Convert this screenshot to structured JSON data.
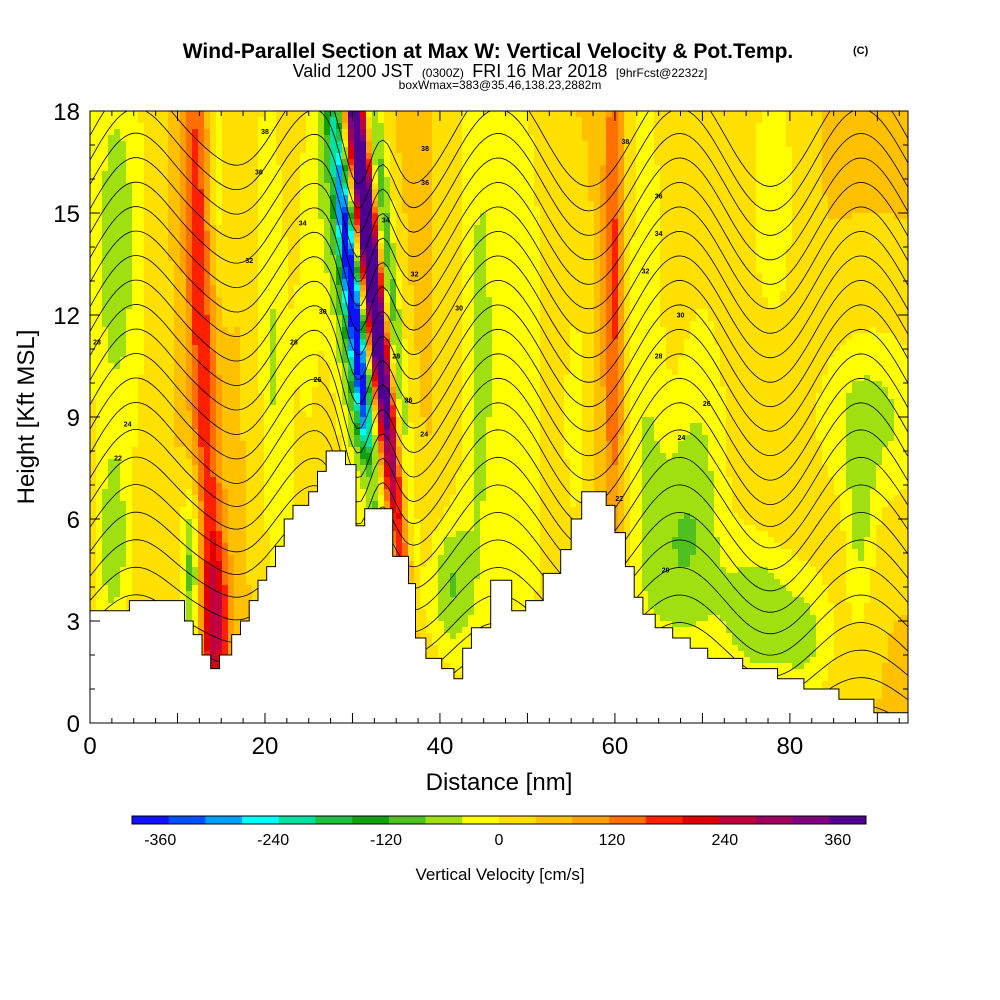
{
  "title": {
    "main": "Wind-Parallel Section at Max W: Vertical Velocity & Pot.Temp.",
    "copyright": "(C)",
    "valid_prefix": "Valid 1200 JST",
    "valid_utc": "(0300Z)",
    "valid_date": "FRI 16 Mar 2018",
    "forecast": "[9hrFcst@2232z]",
    "box": "boxWmax=383@35.46,138.23,2882m"
  },
  "chart_data": {
    "type": "heatmap",
    "xlabel": "Distance [nm]",
    "ylabel": "Height [Kft MSL]",
    "xlim": [
      0,
      93.5
    ],
    "ylim": [
      0,
      18
    ],
    "x_ticks": [
      "0",
      "20",
      "40",
      "60",
      "80"
    ],
    "x_tick_values": [
      0,
      20,
      40,
      60,
      80
    ],
    "y_ticks": [
      "0",
      "3",
      "6",
      "9",
      "12",
      "15",
      "18"
    ],
    "y_tick_values": [
      0,
      3,
      6,
      9,
      12,
      15,
      18
    ],
    "grid": false,
    "colorbar": {
      "label": "Vertical Velocity [cm/s]",
      "tick_labels": [
        "-360",
        "-240",
        "-120",
        "0",
        "120",
        "240",
        "360"
      ],
      "tick_values": [
        -360,
        -240,
        -120,
        0,
        120,
        240,
        360
      ],
      "min": -390,
      "max": 390,
      "colors": [
        "#1010ff",
        "#0050ff",
        "#00a0ff",
        "#00ffff",
        "#00e0a0",
        "#20c040",
        "#10a010",
        "#50c020",
        "#a0e010",
        "#ffff00",
        "#ffe000",
        "#ffc000",
        "#ffa000",
        "#ff7000",
        "#ff2000",
        "#e00000",
        "#c00040",
        "#a00060",
        "#800080",
        "#500090"
      ]
    },
    "terrain": [
      [
        0,
        3.3
      ],
      [
        4.5,
        3.3
      ],
      [
        4.5,
        3.6
      ],
      [
        10.8,
        3.6
      ],
      [
        10.8,
        3.0
      ],
      [
        11.8,
        3.0
      ],
      [
        11.8,
        2.6
      ],
      [
        12.8,
        2.6
      ],
      [
        12.8,
        2.0
      ],
      [
        13.8,
        2.0
      ],
      [
        13.8,
        1.6
      ],
      [
        14.8,
        1.6
      ],
      [
        14.8,
        2.0
      ],
      [
        16.2,
        2.0
      ],
      [
        16.2,
        2.6
      ],
      [
        17.2,
        2.6
      ],
      [
        17.2,
        3.0
      ],
      [
        18.2,
        3.0
      ],
      [
        18.2,
        3.6
      ],
      [
        19.2,
        3.6
      ],
      [
        19.2,
        4.2
      ],
      [
        20.2,
        4.2
      ],
      [
        20.2,
        4.6
      ],
      [
        21.2,
        4.6
      ],
      [
        21.2,
        5.2
      ],
      [
        22.2,
        5.2
      ],
      [
        22.2,
        6.0
      ],
      [
        23.2,
        6.0
      ],
      [
        23.2,
        6.4
      ],
      [
        25.0,
        6.4
      ],
      [
        25.0,
        6.8
      ],
      [
        26.0,
        6.8
      ],
      [
        26.0,
        7.4
      ],
      [
        27.0,
        7.4
      ],
      [
        27.0,
        8.0
      ],
      [
        29.2,
        8.0
      ],
      [
        29.2,
        7.6
      ],
      [
        30.4,
        7.6
      ],
      [
        30.4,
        5.8
      ],
      [
        31.4,
        5.8
      ],
      [
        31.4,
        6.3
      ],
      [
        34.6,
        6.3
      ],
      [
        34.6,
        4.9
      ],
      [
        36.4,
        4.9
      ],
      [
        36.4,
        4.1
      ],
      [
        37.2,
        4.1
      ],
      [
        37.2,
        2.5
      ],
      [
        38.4,
        2.5
      ],
      [
        38.4,
        1.9
      ],
      [
        40.2,
        1.9
      ],
      [
        40.2,
        1.6
      ],
      [
        41.6,
        1.6
      ],
      [
        41.6,
        1.3
      ],
      [
        42.6,
        1.3
      ],
      [
        42.6,
        2.2
      ],
      [
        43.6,
        2.2
      ],
      [
        43.6,
        2.8
      ],
      [
        45.8,
        2.8
      ],
      [
        45.8,
        4.2
      ],
      [
        48.2,
        4.2
      ],
      [
        48.2,
        3.3
      ],
      [
        49.8,
        3.3
      ],
      [
        49.8,
        3.6
      ],
      [
        51.8,
        3.6
      ],
      [
        51.8,
        4.4
      ],
      [
        53.8,
        4.4
      ],
      [
        53.8,
        5.1
      ],
      [
        55.0,
        5.1
      ],
      [
        55.0,
        6.0
      ],
      [
        56.2,
        6.0
      ],
      [
        56.2,
        6.8
      ],
      [
        59.0,
        6.8
      ],
      [
        59.0,
        6.4
      ],
      [
        60.0,
        6.4
      ],
      [
        60.0,
        5.6
      ],
      [
        61.2,
        5.6
      ],
      [
        61.2,
        4.6
      ],
      [
        62.2,
        4.6
      ],
      [
        62.2,
        3.7
      ],
      [
        63.2,
        3.7
      ],
      [
        63.2,
        3.2
      ],
      [
        64.6,
        3.2
      ],
      [
        64.6,
        2.8
      ],
      [
        66.6,
        2.8
      ],
      [
        66.6,
        2.5
      ],
      [
        68.6,
        2.5
      ],
      [
        68.6,
        2.2
      ],
      [
        70.6,
        2.2
      ],
      [
        70.6,
        1.9
      ],
      [
        74.6,
        1.9
      ],
      [
        74.6,
        1.6
      ],
      [
        78.6,
        1.6
      ],
      [
        78.6,
        1.3
      ],
      [
        81.6,
        1.3
      ],
      [
        81.6,
        1.0
      ],
      [
        85.6,
        1.0
      ],
      [
        85.6,
        0.7
      ],
      [
        89.6,
        0.7
      ],
      [
        89.6,
        0.3
      ],
      [
        93.5,
        0.3
      ]
    ],
    "w_background": 40,
    "w_features": [
      {
        "x": 31.9,
        "y": 14.0,
        "sx": 0.75,
        "sy": 5.5,
        "tilt": -0.4,
        "amp": 520
      },
      {
        "x": 30.2,
        "y": 12.0,
        "sx": 0.7,
        "sy": 4.5,
        "tilt": -0.4,
        "amp": -430
      },
      {
        "x": 32.0,
        "y": 7.2,
        "sx": 0.6,
        "sy": 0.9,
        "tilt": -0.3,
        "amp": 160
      },
      {
        "x": 33.8,
        "y": 14.0,
        "sx": 0.8,
        "sy": 6.0,
        "tilt": -0.35,
        "amp": -150
      },
      {
        "x": 28.6,
        "y": 12.5,
        "sx": 1.3,
        "sy": 6.0,
        "tilt": -0.35,
        "amp": -95
      },
      {
        "x": 12.8,
        "y": 11.5,
        "sx": 1.2,
        "sy": 8.5,
        "tilt": -0.12,
        "amp": 150
      },
      {
        "x": 14.4,
        "y": 3.0,
        "sx": 1.1,
        "sy": 1.8,
        "tilt": 0.0,
        "amp": 150
      },
      {
        "x": 11.6,
        "y": 4.5,
        "sx": 0.8,
        "sy": 2.0,
        "tilt": 0.0,
        "amp": -150
      },
      {
        "x": 14.5,
        "y": 16.0,
        "sx": 0.9,
        "sy": 3.0,
        "tilt": 0.0,
        "amp": -70
      },
      {
        "x": 3.0,
        "y": 14.0,
        "sx": 2.5,
        "sy": 5.0,
        "tilt": 0.0,
        "amp": -100
      },
      {
        "x": 2.6,
        "y": 5.0,
        "sx": 1.4,
        "sy": 2.0,
        "tilt": 0.0,
        "amp": -90
      },
      {
        "x": 21.0,
        "y": 10.5,
        "sx": 1.3,
        "sy": 7.0,
        "tilt": -0.1,
        "amp": -80
      },
      {
        "x": 25.0,
        "y": 12.5,
        "sx": 1.5,
        "sy": 5.0,
        "tilt": 0.0,
        "amp": -50
      },
      {
        "x": 44.5,
        "y": 11.0,
        "sx": 1.8,
        "sy": 9.0,
        "tilt": 0.0,
        "amp": -85
      },
      {
        "x": 41.0,
        "y": 4.0,
        "sx": 1.6,
        "sy": 1.5,
        "tilt": 0.0,
        "amp": -110
      },
      {
        "x": 49.5,
        "y": 9.5,
        "sx": 2.0,
        "sy": 8.0,
        "tilt": 0.0,
        "amp": -70
      },
      {
        "x": 55.5,
        "y": 9.0,
        "sx": 1.1,
        "sy": 3.0,
        "tilt": 0.0,
        "amp": -60
      },
      {
        "x": 59.8,
        "y": 13.0,
        "sx": 0.8,
        "sy": 6.0,
        "tilt": 0.0,
        "amp": 130
      },
      {
        "x": 63.5,
        "y": 12.0,
        "sx": 1.5,
        "sy": 7.0,
        "tilt": 0.0,
        "amp": -70
      },
      {
        "x": 67.0,
        "y": 5.0,
        "sx": 3.0,
        "sy": 2.5,
        "tilt": 0.0,
        "amp": -95
      },
      {
        "x": 70.0,
        "y": 8.5,
        "sx": 2.5,
        "sy": 4.0,
        "tilt": 0.0,
        "amp": -60
      },
      {
        "x": 76.0,
        "y": 3.2,
        "sx": 3.0,
        "sy": 1.7,
        "tilt": 0.0,
        "amp": -105
      },
      {
        "x": 82.0,
        "y": 2.5,
        "sx": 2.5,
        "sy": 1.5,
        "tilt": 0.0,
        "amp": -80
      },
      {
        "x": 89.5,
        "y": 9.0,
        "sx": 5.0,
        "sy": 2.0,
        "tilt": 0.0,
        "amp": -90
      },
      {
        "x": 78.0,
        "y": 15.5,
        "sx": 2.0,
        "sy": 3.0,
        "tilt": 0.0,
        "amp": -70
      },
      {
        "x": 88.0,
        "y": 5.5,
        "sx": 1.2,
        "sy": 2.0,
        "tilt": 0.0,
        "amp": -75
      }
    ],
    "theta_contours": {
      "levels": [
        18,
        19,
        20,
        21,
        22,
        23,
        24,
        25,
        26,
        27,
        28,
        29,
        30,
        31,
        32,
        33,
        34,
        35,
        36,
        37,
        38,
        39,
        40,
        41,
        42
      ],
      "base": 18,
      "kft_per_level": 0.72,
      "wave_amplitude": 1.5,
      "labeled": [
        {
          "text": "38",
          "x": 20.0,
          "y": 17.4
        },
        {
          "text": "36",
          "x": 19.3,
          "y": 16.2
        },
        {
          "text": "34",
          "x": 24.3,
          "y": 14.7
        },
        {
          "text": "32",
          "x": 18.2,
          "y": 13.6
        },
        {
          "text": "30",
          "x": 26.6,
          "y": 12.1
        },
        {
          "text": "28",
          "x": 23.3,
          "y": 11.2
        },
        {
          "text": "28",
          "x": 0.8,
          "y": 11.2
        },
        {
          "text": "26",
          "x": 26.0,
          "y": 10.1
        },
        {
          "text": "24",
          "x": 4.3,
          "y": 8.8
        },
        {
          "text": "22",
          "x": 3.2,
          "y": 7.8
        },
        {
          "text": "38",
          "x": 38.3,
          "y": 16.9
        },
        {
          "text": "36",
          "x": 38.3,
          "y": 15.9
        },
        {
          "text": "34",
          "x": 33.8,
          "y": 14.8
        },
        {
          "text": "32",
          "x": 37.1,
          "y": 13.2
        },
        {
          "text": "30",
          "x": 42.2,
          "y": 12.2
        },
        {
          "text": "28",
          "x": 35.0,
          "y": 10.8
        },
        {
          "text": "26",
          "x": 36.4,
          "y": 9.5
        },
        {
          "text": "24",
          "x": 38.2,
          "y": 8.5
        },
        {
          "text": "38",
          "x": 61.2,
          "y": 17.1
        },
        {
          "text": "36",
          "x": 65.0,
          "y": 15.5
        },
        {
          "text": "34",
          "x": 65.0,
          "y": 14.4
        },
        {
          "text": "32",
          "x": 63.5,
          "y": 13.3
        },
        {
          "text": "30",
          "x": 67.5,
          "y": 12.0
        },
        {
          "text": "28",
          "x": 65.0,
          "y": 10.8
        },
        {
          "text": "26",
          "x": 70.5,
          "y": 9.4
        },
        {
          "text": "24",
          "x": 67.6,
          "y": 8.4
        },
        {
          "text": "22",
          "x": 60.5,
          "y": 6.6
        },
        {
          "text": "20",
          "x": 65.8,
          "y": 4.5
        }
      ]
    }
  }
}
